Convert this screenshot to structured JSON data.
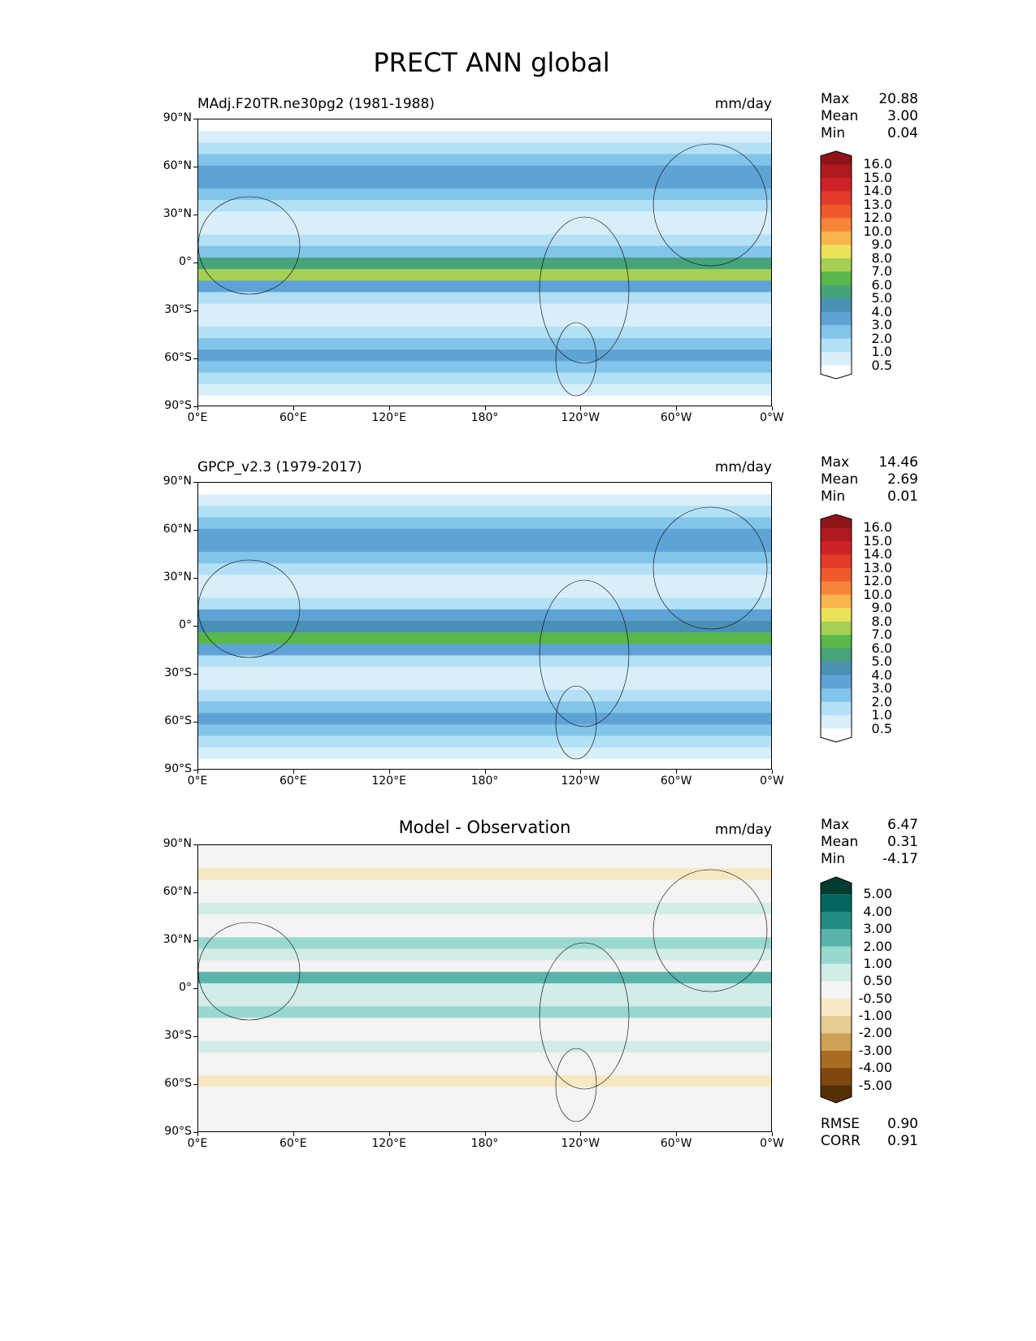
{
  "figure_title": "PRECT ANN global",
  "chart_data": [
    {
      "type": "heatmap",
      "title_left": "MAdj.F20TR.ne30pg2 (1981-1988)",
      "title_center": "",
      "units": "mm/day",
      "stats": {
        "labels": [
          "Max",
          "Mean",
          "Min"
        ],
        "values": [
          "20.88",
          "3.00",
          "0.04"
        ]
      },
      "colorbar": {
        "levels": [
          "0.5",
          "1.0",
          "2.0",
          "3.0",
          "4.0",
          "5.0",
          "6.0",
          "7.0",
          "8.0",
          "9.0",
          "10.0",
          "12.0",
          "13.0",
          "14.0",
          "15.0",
          "16.0"
        ],
        "colors": [
          "#8f1418",
          "#b0191f",
          "#cf2128",
          "#e23b2a",
          "#ef5a2a",
          "#f6853a",
          "#f8b54e",
          "#ebe25c",
          "#a6cf55",
          "#58b84a",
          "#46a37a",
          "#4a90b4",
          "#5fa3d6",
          "#83c4ea",
          "#b3e0f5",
          "#d8eff9",
          "#ffffff"
        ]
      },
      "xticks": [
        "0°E",
        "60°E",
        "120°E",
        "180°",
        "120°W",
        "60°W",
        "0°W"
      ],
      "yticks": [
        "90°N",
        "60°N",
        "30°N",
        "0°",
        "30°S",
        "60°S",
        "90°S"
      ],
      "xlim": [
        0,
        360
      ],
      "ylim": [
        -90,
        90
      ]
    },
    {
      "type": "heatmap",
      "title_left": "GPCP_v2.3 (1979-2017)",
      "title_center": "",
      "units": "mm/day",
      "stats": {
        "labels": [
          "Max",
          "Mean",
          "Min"
        ],
        "values": [
          "14.46",
          "2.69",
          "0.01"
        ]
      },
      "colorbar": {
        "levels": [
          "0.5",
          "1.0",
          "2.0",
          "3.0",
          "4.0",
          "5.0",
          "6.0",
          "7.0",
          "8.0",
          "9.0",
          "10.0",
          "12.0",
          "13.0",
          "14.0",
          "15.0",
          "16.0"
        ],
        "colors": [
          "#8f1418",
          "#b0191f",
          "#cf2128",
          "#e23b2a",
          "#ef5a2a",
          "#f6853a",
          "#f8b54e",
          "#ebe25c",
          "#a6cf55",
          "#58b84a",
          "#46a37a",
          "#4a90b4",
          "#5fa3d6",
          "#83c4ea",
          "#b3e0f5",
          "#d8eff9",
          "#ffffff"
        ]
      },
      "xticks": [
        "0°E",
        "60°E",
        "120°E",
        "180°",
        "120°W",
        "60°W",
        "0°W"
      ],
      "yticks": [
        "90°N",
        "60°N",
        "30°N",
        "0°",
        "30°S",
        "60°S",
        "90°S"
      ],
      "xlim": [
        0,
        360
      ],
      "ylim": [
        -90,
        90
      ]
    },
    {
      "type": "heatmap",
      "title_left": "",
      "title_center": "Model - Observation",
      "units": "mm/day",
      "stats": {
        "labels": [
          "Max",
          "Mean",
          "Min"
        ],
        "values": [
          "6.47",
          "0.31",
          "-4.17"
        ]
      },
      "colorbar": {
        "levels": [
          "-5.00",
          "-4.00",
          "-3.00",
          "-2.00",
          "-1.00",
          "-0.50",
          "0.50",
          "1.00",
          "2.00",
          "3.00",
          "4.00",
          "5.00"
        ],
        "colors": [
          "#003c30",
          "#01665e",
          "#238b82",
          "#5ab4ac",
          "#99d8cf",
          "#d2ece8",
          "#f4f4f2",
          "#f6e8c3",
          "#e6cd94",
          "#cfa055",
          "#a86c23",
          "#7f470d",
          "#543005"
        ]
      },
      "extra_stats": {
        "labels": [
          "RMSE",
          "CORR"
        ],
        "values": [
          "0.90",
          "0.91"
        ]
      },
      "xticks": [
        "0°E",
        "60°E",
        "120°E",
        "180°",
        "120°W",
        "60°W",
        "0°W"
      ],
      "yticks": [
        "90°N",
        "60°N",
        "30°N",
        "0°",
        "30°S",
        "60°S",
        "90°S"
      ],
      "xlim": [
        0,
        360
      ],
      "ylim": [
        -90,
        90
      ]
    }
  ]
}
